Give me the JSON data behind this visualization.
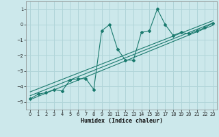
{
  "title": "",
  "xlabel": "Humidex (Indice chaleur)",
  "ylabel": "",
  "background_color": "#cce8eb",
  "grid_color": "#b0d4d8",
  "line_color": "#1a7a6e",
  "xlim": [
    -0.5,
    23.5
  ],
  "ylim": [
    -5.5,
    1.5
  ],
  "xticks": [
    0,
    1,
    2,
    3,
    4,
    5,
    6,
    7,
    8,
    9,
    10,
    11,
    12,
    13,
    14,
    15,
    16,
    17,
    18,
    19,
    20,
    21,
    22,
    23
  ],
  "yticks": [
    -5,
    -4,
    -3,
    -2,
    -1,
    0,
    1
  ],
  "scatter_x": [
    0,
    1,
    2,
    3,
    4,
    5,
    6,
    7,
    8,
    9,
    10,
    11,
    12,
    13,
    14,
    15,
    16,
    17,
    18,
    19,
    20,
    21,
    22,
    23
  ],
  "scatter_y": [
    -4.8,
    -4.5,
    -4.4,
    -4.2,
    -4.3,
    -3.6,
    -3.5,
    -3.5,
    -4.2,
    -0.4,
    0.0,
    -1.6,
    -2.3,
    -2.3,
    -0.5,
    -0.4,
    1.0,
    0.0,
    -0.7,
    -0.5,
    -0.6,
    -0.4,
    -0.2,
    0.1
  ],
  "regression_lines": [
    {
      "x": [
        0,
        23
      ],
      "y": [
        -4.85,
        -0.05
      ]
    },
    {
      "x": [
        0,
        23
      ],
      "y": [
        -4.6,
        0.1
      ]
    },
    {
      "x": [
        0,
        23
      ],
      "y": [
        -4.35,
        0.25
      ]
    }
  ],
  "xlabel_fontsize": 6.0,
  "tick_fontsize": 4.8
}
